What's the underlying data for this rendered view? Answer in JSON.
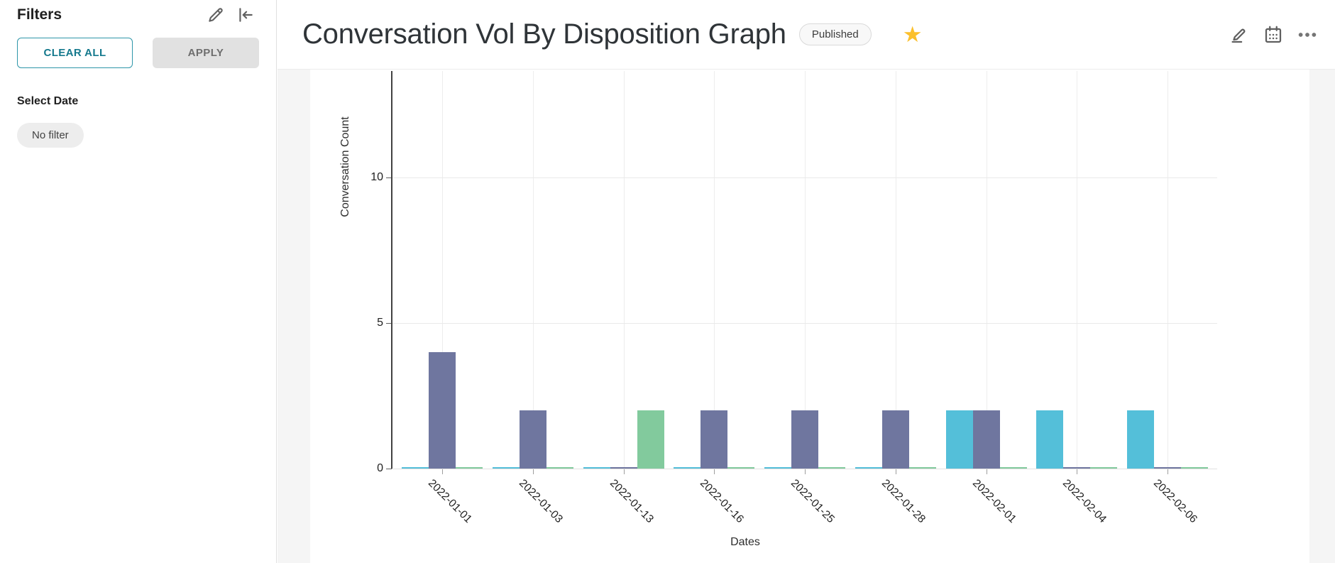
{
  "sidebar": {
    "title": "Filters",
    "clear_all_label": "CLEAR ALL",
    "apply_label": "APPLY",
    "select_date_label": "Select Date",
    "no_filter_chip": "No filter",
    "icons": [
      "edit-pencil-icon",
      "collapse-left-icon"
    ]
  },
  "header": {
    "title": "Conversation Vol By Disposition Graph",
    "status_badge": "Published",
    "favorite_star_icon": "star-filled",
    "action_icons": [
      "edit-pencil-underline-icon",
      "calendar-icon",
      "more-ellipsis-icon"
    ]
  },
  "colors": {
    "star": "#FBC02D",
    "teal_accent": "#15798d",
    "series_cyan": "#54bfd9",
    "series_purple": "#6f769f",
    "series_green": "#82ca9d"
  },
  "chart_data": {
    "type": "bar",
    "title": "",
    "categories": [
      "2022-01-01",
      "2022-01-03",
      "2022-01-13",
      "2022-01-16",
      "2022-01-25",
      "2022-01-28",
      "2022-02-01",
      "2022-02-04",
      "2022-02-06"
    ],
    "series": [
      {
        "name": "series-1-cyan",
        "color": "#54bfd9",
        "values": [
          0,
          0,
          0,
          0,
          0,
          0,
          2,
          2,
          2
        ]
      },
      {
        "name": "series-2-purple",
        "color": "#6f769f",
        "values": [
          4,
          2,
          0,
          2,
          2,
          2,
          2,
          0,
          0
        ]
      },
      {
        "name": "series-3-green",
        "color": "#82ca9d",
        "values": [
          0,
          0,
          2,
          0,
          0,
          0,
          0,
          0,
          0
        ]
      }
    ],
    "xlabel": "Dates",
    "ylabel": "Conversation Count",
    "yticks": [
      0,
      5,
      10
    ],
    "ylim": [
      0,
      13.7
    ],
    "grid": true,
    "legend": false
  }
}
